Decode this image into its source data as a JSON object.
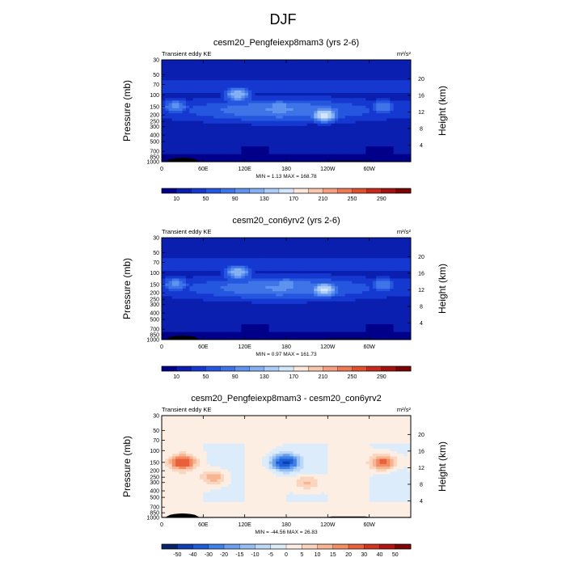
{
  "page_title": "DJF",
  "chart_data": [
    {
      "type": "heatmap",
      "title": "cesm20_Pengfeiexp8mam3 (yrs 2-6)",
      "left_label": "Transient eddy KE",
      "units_label": "m²/s²",
      "xlabel": "",
      "ylabel": "Pressure (mb)",
      "ylabel_right": "Height (km)",
      "x_ticks": [
        "0",
        "60E",
        "120E",
        "180",
        "120W",
        "60W"
      ],
      "y_ticks": [
        "30",
        "50",
        "70",
        "100",
        "150",
        "200",
        "250",
        "300",
        "400",
        "500",
        "700",
        "850",
        "1000"
      ],
      "y_right_ticks": [
        "20",
        "16",
        "12",
        "8",
        "4"
      ],
      "stats": "MIN =   1.13  MAX = 168.78",
      "colorbar_labels": [
        "10",
        "50",
        "90",
        "130",
        "170",
        "210",
        "250",
        "290"
      ],
      "features": [
        {
          "lon": 235,
          "plev": 200,
          "value": 168
        },
        {
          "lon": 110,
          "plev": 100,
          "value": 130
        },
        {
          "lon": 170,
          "plev": 150,
          "value": 110
        },
        {
          "lon": 20,
          "plev": 150,
          "value": 100
        },
        {
          "lon": 320,
          "plev": 150,
          "value": 90
        }
      ]
    },
    {
      "type": "heatmap",
      "title": "cesm20_con6yrv2 (yrs 2-6)",
      "left_label": "Transient eddy KE",
      "units_label": "m²/s²",
      "xlabel": "",
      "ylabel": "Pressure (mb)",
      "ylabel_right": "Height (km)",
      "x_ticks": [
        "0",
        "60E",
        "120E",
        "180",
        "120W",
        "60W"
      ],
      "y_ticks": [
        "30",
        "50",
        "70",
        "100",
        "150",
        "200",
        "250",
        "300",
        "400",
        "500",
        "700",
        "850",
        "1000"
      ],
      "y_right_ticks": [
        "20",
        "16",
        "12",
        "8",
        "4"
      ],
      "stats": "MIN =   0.97  MAX = 161.73",
      "colorbar_labels": [
        "10",
        "50",
        "90",
        "130",
        "170",
        "210",
        "250",
        "290"
      ],
      "features": [
        {
          "lon": 235,
          "plev": 180,
          "value": 162
        },
        {
          "lon": 110,
          "plev": 100,
          "value": 130
        },
        {
          "lon": 180,
          "plev": 150,
          "value": 110
        },
        {
          "lon": 20,
          "plev": 150,
          "value": 100
        },
        {
          "lon": 320,
          "plev": 150,
          "value": 90
        }
      ]
    },
    {
      "type": "heatmap",
      "title": "cesm20_Pengfeiexp8mam3 - cesm20_con6yrv2",
      "left_label": "Transient eddy KE",
      "units_label": "m²/s²",
      "xlabel": "",
      "ylabel": "Pressure (mb)",
      "ylabel_right": "Height (km)",
      "x_ticks": [
        "0",
        "60E",
        "120E",
        "180",
        "120W",
        "60W"
      ],
      "y_ticks": [
        "30",
        "50",
        "70",
        "100",
        "150",
        "200",
        "250",
        "300",
        "400",
        "500",
        "700",
        "850",
        "1000"
      ],
      "y_right_ticks": [
        "20",
        "16",
        "12",
        "8",
        "4"
      ],
      "stats": "MIN = -44.56  MAX =  26.83",
      "colorbar_labels": [
        "-50",
        "-40",
        "-30",
        "-20",
        "-15",
        "-10",
        "-5",
        "0",
        "5",
        "10",
        "15",
        "20",
        "30",
        "40",
        "50"
      ],
      "features": [
        {
          "lon": 178,
          "plev": 150,
          "value": -44
        },
        {
          "lon": 30,
          "plev": 150,
          "value": 26
        },
        {
          "lon": 320,
          "plev": 150,
          "value": 25
        },
        {
          "lon": 75,
          "plev": 250,
          "value": 15
        },
        {
          "lon": 210,
          "plev": 300,
          "value": 12
        }
      ]
    }
  ]
}
